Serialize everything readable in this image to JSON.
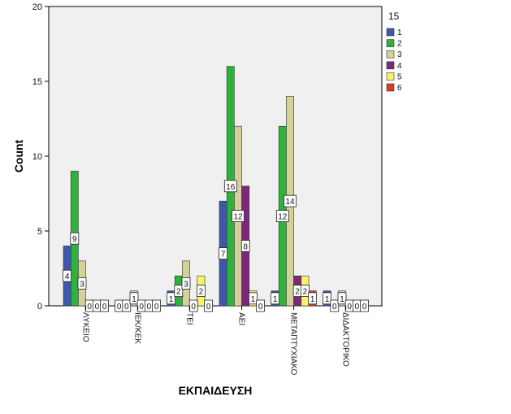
{
  "chart_data": {
    "type": "bar",
    "xlabel": "ΕΚΠΑΙΔΕΥΣΗ",
    "ylabel": "Count",
    "ylim": [
      0,
      20
    ],
    "yticks": [
      0,
      5,
      10,
      15,
      20
    ],
    "grid": false,
    "legend_title": "15",
    "legend_position": "right",
    "categories": [
      "ΛΥΚΕΙΟ",
      "ΙΕΚ/ΚΕΚ",
      "ΤΕΙ",
      "ΑΕΙ",
      "ΜΕΤΑΠΤΥΧΙΑΚΟ",
      "ΔΙΔΑΚΤΟΡΙΚΟ"
    ],
    "series": [
      {
        "name": "1",
        "color": "#3e58ac",
        "values": [
          4,
          0,
          1,
          7,
          1,
          1
        ]
      },
      {
        "name": "2",
        "color": "#2bb33a",
        "values": [
          9,
          0,
          2,
          16,
          12,
          0
        ]
      },
      {
        "name": "3",
        "color": "#d2d29a",
        "values": [
          3,
          1,
          3,
          12,
          14,
          1
        ]
      },
      {
        "name": "4",
        "color": "#7c2878",
        "values": [
          0,
          0,
          0,
          8,
          2,
          0
        ]
      },
      {
        "name": "5",
        "color": "#f8f46a",
        "values": [
          0,
          0,
          2,
          1,
          2,
          0
        ]
      },
      {
        "name": "6",
        "color": "#e23a2a",
        "values": [
          0,
          0,
          0,
          0,
          1,
          0
        ]
      }
    ]
  }
}
